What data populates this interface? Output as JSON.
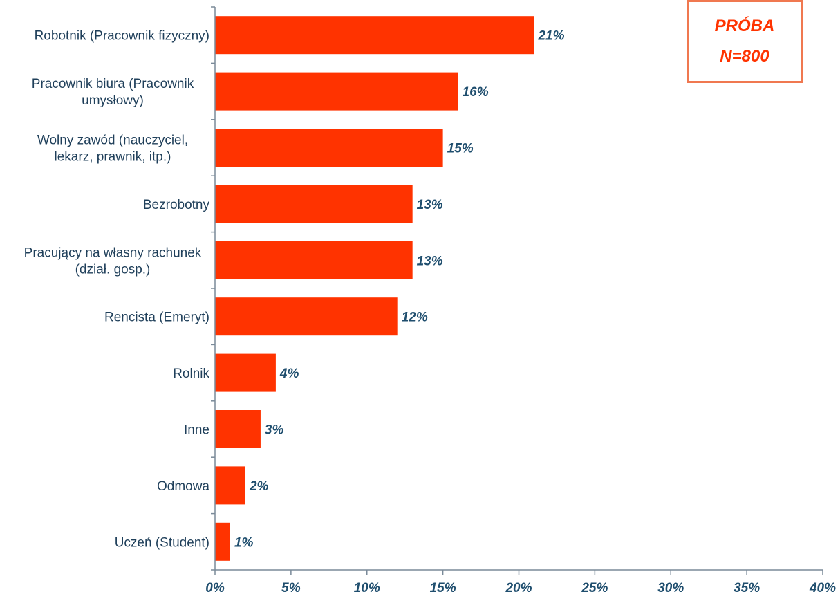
{
  "legend_box": {
    "line1": "PRÓBA",
    "line2": "N=800"
  },
  "chart_data": {
    "type": "bar",
    "orientation": "horizontal",
    "categories": [
      [
        "Robotnik (Pracownik fizyczny)"
      ],
      [
        "Pracownik biura (Pracownik",
        "umysłowy)"
      ],
      [
        "Wolny zawód (nauczyciel,",
        "lekarz, prawnik, itp.)"
      ],
      [
        "Bezrobotny"
      ],
      [
        "Pracujący na własny rachunek",
        "(dział. gosp.)"
      ],
      [
        "Rencista (Emeryt)"
      ],
      [
        "Rolnik"
      ],
      [
        "Inne"
      ],
      [
        "Odmowa"
      ],
      [
        "Uczeń (Student)"
      ]
    ],
    "values": [
      21,
      16,
      15,
      13,
      13,
      12,
      4,
      3,
      2,
      1
    ],
    "value_labels": [
      "21%",
      "16%",
      "15%",
      "13%",
      "13%",
      "12%",
      "4%",
      "3%",
      "2%",
      "1%"
    ],
    "xlim": [
      0,
      40
    ],
    "xticks": [
      0,
      5,
      10,
      15,
      20,
      25,
      30,
      35,
      40
    ],
    "xtick_labels": [
      "0%",
      "5%",
      "10%",
      "15%",
      "20%",
      "25%",
      "30%",
      "35%",
      "40%"
    ],
    "title": "",
    "xlabel": "",
    "ylabel": "",
    "grid": false,
    "bar_color": "#ff3300",
    "label_color": "#1f4e6e"
  }
}
